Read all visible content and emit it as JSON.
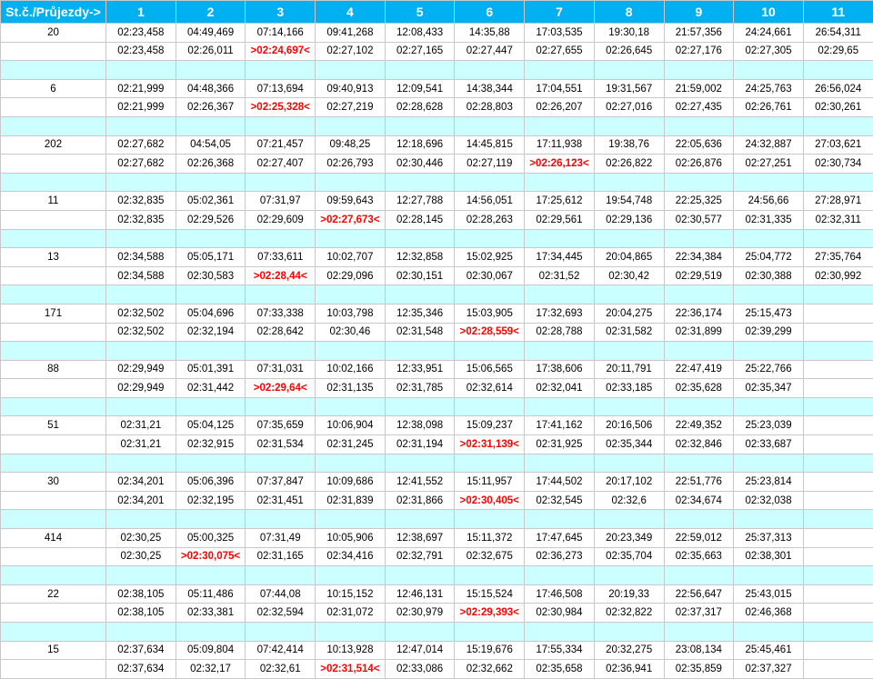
{
  "table": {
    "corner": "St.č./Průjezdy->",
    "columns": [
      "1",
      "2",
      "3",
      "4",
      "5",
      "6",
      "7",
      "8",
      "9",
      "10",
      "11"
    ],
    "groups": [
      {
        "id": "20",
        "cumulative": [
          "02:23,458",
          "04:49,469",
          "07:14,166",
          "09:41,268",
          "12:08,433",
          "14:35,88",
          "17:03,535",
          "19:30,18",
          "21:57,356",
          "24:24,661",
          "26:54,311"
        ],
        "laps": [
          "02:23,458",
          "02:26,011",
          ">02:24,697<",
          "02:27,102",
          "02:27,165",
          "02:27,447",
          "02:27,655",
          "02:26,645",
          "02:27,176",
          "02:27,305",
          "02:29,65"
        ]
      },
      {
        "id": "6",
        "cumulative": [
          "02:21,999",
          "04:48,366",
          "07:13,694",
          "09:40,913",
          "12:09,541",
          "14:38,344",
          "17:04,551",
          "19:31,567",
          "21:59,002",
          "24:25,763",
          "26:56,024"
        ],
        "laps": [
          "02:21,999",
          "02:26,367",
          ">02:25,328<",
          "02:27,219",
          "02:28,628",
          "02:28,803",
          "02:26,207",
          "02:27,016",
          "02:27,435",
          "02:26,761",
          "02:30,261"
        ]
      },
      {
        "id": "202",
        "cumulative": [
          "02:27,682",
          "04:54,05",
          "07:21,457",
          "09:48,25",
          "12:18,696",
          "14:45,815",
          "17:11,938",
          "19:38,76",
          "22:05,636",
          "24:32,887",
          "27:03,621"
        ],
        "laps": [
          "02:27,682",
          "02:26,368",
          "02:27,407",
          "02:26,793",
          "02:30,446",
          "02:27,119",
          ">02:26,123<",
          "02:26,822",
          "02:26,876",
          "02:27,251",
          "02:30,734"
        ]
      },
      {
        "id": "11",
        "cumulative": [
          "02:32,835",
          "05:02,361",
          "07:31,97",
          "09:59,643",
          "12:27,788",
          "14:56,051",
          "17:25,612",
          "19:54,748",
          "22:25,325",
          "24:56,66",
          "27:28,971"
        ],
        "laps": [
          "02:32,835",
          "02:29,526",
          "02:29,609",
          ">02:27,673<",
          "02:28,145",
          "02:28,263",
          "02:29,561",
          "02:29,136",
          "02:30,577",
          "02:31,335",
          "02:32,311"
        ]
      },
      {
        "id": "13",
        "cumulative": [
          "02:34,588",
          "05:05,171",
          "07:33,611",
          "10:02,707",
          "12:32,858",
          "15:02,925",
          "17:34,445",
          "20:04,865",
          "22:34,384",
          "25:04,772",
          "27:35,764"
        ],
        "laps": [
          "02:34,588",
          "02:30,583",
          ">02:28,44<",
          "02:29,096",
          "02:30,151",
          "02:30,067",
          "02:31,52",
          "02:30,42",
          "02:29,519",
          "02:30,388",
          "02:30,992"
        ]
      },
      {
        "id": "171",
        "cumulative": [
          "02:32,502",
          "05:04,696",
          "07:33,338",
          "10:03,798",
          "12:35,346",
          "15:03,905",
          "17:32,693",
          "20:04,275",
          "22:36,174",
          "25:15,473",
          ""
        ],
        "laps": [
          "02:32,502",
          "02:32,194",
          "02:28,642",
          "02:30,46",
          "02:31,548",
          ">02:28,559<",
          "02:28,788",
          "02:31,582",
          "02:31,899",
          "02:39,299",
          ""
        ]
      },
      {
        "id": "88",
        "cumulative": [
          "02:29,949",
          "05:01,391",
          "07:31,031",
          "10:02,166",
          "12:33,951",
          "15:06,565",
          "17:38,606",
          "20:11,791",
          "22:47,419",
          "25:22,766",
          ""
        ],
        "laps": [
          "02:29,949",
          "02:31,442",
          ">02:29,64<",
          "02:31,135",
          "02:31,785",
          "02:32,614",
          "02:32,041",
          "02:33,185",
          "02:35,628",
          "02:35,347",
          ""
        ]
      },
      {
        "id": "51",
        "cumulative": [
          "02:31,21",
          "05:04,125",
          "07:35,659",
          "10:06,904",
          "12:38,098",
          "15:09,237",
          "17:41,162",
          "20:16,506",
          "22:49,352",
          "25:23,039",
          ""
        ],
        "laps": [
          "02:31,21",
          "02:32,915",
          "02:31,534",
          "02:31,245",
          "02:31,194",
          ">02:31,139<",
          "02:31,925",
          "02:35,344",
          "02:32,846",
          "02:33,687",
          ""
        ]
      },
      {
        "id": "30",
        "cumulative": [
          "02:34,201",
          "05:06,396",
          "07:37,847",
          "10:09,686",
          "12:41,552",
          "15:11,957",
          "17:44,502",
          "20:17,102",
          "22:51,776",
          "25:23,814",
          ""
        ],
        "laps": [
          "02:34,201",
          "02:32,195",
          "02:31,451",
          "02:31,839",
          "02:31,866",
          ">02:30,405<",
          "02:32,545",
          "02:32,6",
          "02:34,674",
          "02:32,038",
          ""
        ]
      },
      {
        "id": "414",
        "cumulative": [
          "02:30,25",
          "05:00,325",
          "07:31,49",
          "10:05,906",
          "12:38,697",
          "15:11,372",
          "17:47,645",
          "20:23,349",
          "22:59,012",
          "25:37,313",
          ""
        ],
        "laps": [
          "02:30,25",
          ">02:30,075<",
          "02:31,165",
          "02:34,416",
          "02:32,791",
          "02:32,675",
          "02:36,273",
          "02:35,704",
          "02:35,663",
          "02:38,301",
          ""
        ]
      },
      {
        "id": "22",
        "cumulative": [
          "02:38,105",
          "05:11,486",
          "07:44,08",
          "10:15,152",
          "12:46,131",
          "15:15,524",
          "17:46,508",
          "20:19,33",
          "22:56,647",
          "25:43,015",
          ""
        ],
        "laps": [
          "02:38,105",
          "02:33,381",
          "02:32,594",
          "02:31,072",
          "02:30,979",
          ">02:29,393<",
          "02:30,984",
          "02:32,822",
          "02:37,317",
          "02:46,368",
          ""
        ]
      },
      {
        "id": "15",
        "cumulative": [
          "02:37,634",
          "05:09,804",
          "07:42,414",
          "10:13,928",
          "12:47,014",
          "15:19,676",
          "17:55,334",
          "20:32,275",
          "23:08,134",
          "25:45,461",
          ""
        ],
        "laps": [
          "02:37,634",
          "02:32,17",
          "02:32,61",
          ">02:31,514<",
          "02:33,086",
          "02:32,662",
          "02:35,658",
          "02:36,941",
          "02:35,859",
          "02:37,327",
          ""
        ]
      }
    ]
  },
  "colors": {
    "header_bg": "#00b0f0",
    "header_text": "#ffffff",
    "separator_bg": "#ccffff",
    "best_lap": "#ff0000"
  }
}
